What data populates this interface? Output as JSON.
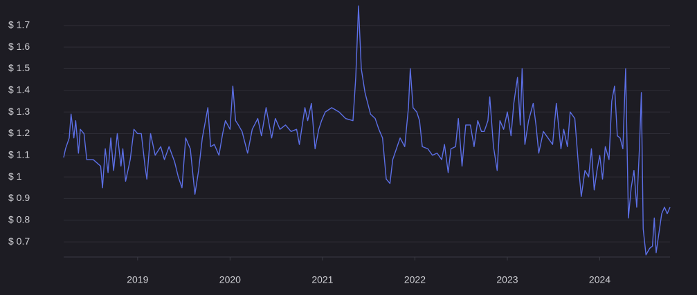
{
  "chart_data": {
    "type": "line",
    "color": "#5c6fe6",
    "grid": true,
    "x": [
      2018.2,
      2018.22,
      2018.26,
      2018.28,
      2018.31,
      2018.33,
      2018.36,
      2018.38,
      2018.42,
      2018.45,
      2018.52,
      2018.6,
      2018.62,
      2018.65,
      2018.68,
      2018.71,
      2018.74,
      2018.78,
      2018.82,
      2018.84,
      2018.87,
      2018.92,
      2018.96,
      2019.0,
      2019.04,
      2019.08,
      2019.1,
      2019.14,
      2019.19,
      2019.25,
      2019.29,
      2019.34,
      2019.4,
      2019.44,
      2019.48,
      2019.52,
      2019.57,
      2019.62,
      2019.66,
      2019.7,
      2019.76,
      2019.79,
      2019.83,
      2019.88,
      2019.92,
      2019.95,
      2020.0,
      2020.03,
      2020.06,
      2020.09,
      2020.13,
      2020.19,
      2020.24,
      2020.3,
      2020.34,
      2020.39,
      2020.45,
      2020.49,
      2020.54,
      2020.6,
      2020.66,
      2020.72,
      2020.75,
      2020.81,
      2020.84,
      2020.88,
      2020.92,
      2020.96,
      2020.99,
      2021.03,
      2021.1,
      2021.18,
      2021.25,
      2021.33,
      2021.36,
      2021.39,
      2021.42,
      2021.46,
      2021.52,
      2021.57,
      2021.61,
      2021.65,
      2021.69,
      2021.73,
      2021.76,
      2021.8,
      2021.84,
      2021.89,
      2021.93,
      2021.95,
      2021.98,
      2022.02,
      2022.05,
      2022.08,
      2022.14,
      2022.19,
      2022.24,
      2022.29,
      2022.32,
      2022.36,
      2022.39,
      2022.44,
      2022.47,
      2022.51,
      2022.55,
      2022.6,
      2022.64,
      2022.68,
      2022.72,
      2022.75,
      2022.79,
      2022.81,
      2022.85,
      2022.89,
      2022.92,
      2022.96,
      2023.0,
      2023.04,
      2023.07,
      2023.11,
      2023.14,
      2023.16,
      2023.19,
      2023.23,
      2023.28,
      2023.31,
      2023.34,
      2023.39,
      2023.44,
      2023.49,
      2023.53,
      2023.58,
      2023.61,
      2023.65,
      2023.68,
      2023.73,
      2023.77,
      2023.8,
      2023.84,
      2023.88,
      2023.91,
      2023.94,
      2023.97,
      2024.0,
      2024.03,
      2024.06,
      2024.1,
      2024.13,
      2024.16,
      2024.19,
      2024.22,
      2024.25,
      2024.28,
      2024.31,
      2024.34,
      2024.37,
      2024.4,
      2024.43,
      2024.45,
      2024.47,
      2024.5,
      2024.54,
      2024.57,
      2024.59,
      2024.61,
      2024.64,
      2024.67,
      2024.7,
      2024.73,
      2024.76
    ],
    "values": [
      1.09,
      1.13,
      1.18,
      1.29,
      1.18,
      1.26,
      1.11,
      1.22,
      1.2,
      1.08,
      1.08,
      1.05,
      0.95,
      1.13,
      1.02,
      1.18,
      1.03,
      1.2,
      1.05,
      1.13,
      0.98,
      1.08,
      1.22,
      1.2,
      1.2,
      1.05,
      0.99,
      1.2,
      1.1,
      1.14,
      1.08,
      1.14,
      1.07,
      1.0,
      0.95,
      1.18,
      1.13,
      0.92,
      1.03,
      1.18,
      1.32,
      1.14,
      1.15,
      1.1,
      1.2,
      1.26,
      1.22,
      1.42,
      1.26,
      1.24,
      1.21,
      1.11,
      1.22,
      1.27,
      1.19,
      1.32,
      1.18,
      1.27,
      1.22,
      1.24,
      1.21,
      1.22,
      1.15,
      1.32,
      1.26,
      1.34,
      1.13,
      1.22,
      1.26,
      1.3,
      1.32,
      1.3,
      1.27,
      1.26,
      1.46,
      1.79,
      1.5,
      1.39,
      1.29,
      1.27,
      1.22,
      1.18,
      0.99,
      0.97,
      1.08,
      1.13,
      1.18,
      1.14,
      1.32,
      1.5,
      1.32,
      1.3,
      1.26,
      1.14,
      1.13,
      1.1,
      1.11,
      1.08,
      1.15,
      1.02,
      1.13,
      1.14,
      1.27,
      1.05,
      1.24,
      1.24,
      1.14,
      1.26,
      1.21,
      1.21,
      1.26,
      1.37,
      1.14,
      1.03,
      1.26,
      1.22,
      1.3,
      1.19,
      1.34,
      1.46,
      1.24,
      1.5,
      1.15,
      1.26,
      1.34,
      1.24,
      1.11,
      1.21,
      1.18,
      1.15,
      1.34,
      1.13,
      1.22,
      1.14,
      1.3,
      1.27,
      1.05,
      0.91,
      1.03,
      1.0,
      1.13,
      0.94,
      1.03,
      1.1,
      0.99,
      1.14,
      1.08,
      1.35,
      1.42,
      1.19,
      1.18,
      1.13,
      1.5,
      0.81,
      0.95,
      1.03,
      0.86,
      1.14,
      1.39,
      0.76,
      0.64,
      0.67,
      0.68,
      0.81,
      0.65,
      0.74,
      0.83,
      0.86,
      0.83,
      0.86
    ],
    "xlim": [
      2018.2,
      2024.76
    ],
    "xticks": [
      2019,
      2020,
      2021,
      2022,
      2023,
      2024
    ],
    "ylim": [
      0.63,
      1.8
    ],
    "yticks": [
      {
        "value": 0.7,
        "label": "$ 0.7"
      },
      {
        "value": 0.8,
        "label": "$ 0.8"
      },
      {
        "value": 0.9,
        "label": "$ 0.9"
      },
      {
        "value": 1,
        "label": "$ 1"
      },
      {
        "value": 1.1,
        "label": "$ 1.1"
      },
      {
        "value": 1.2,
        "label": "$ 1.2"
      },
      {
        "value": 1.3,
        "label": "$ 1.3"
      },
      {
        "value": 1.4,
        "label": "$ 1.4"
      },
      {
        "value": 1.5,
        "label": "$ 1.5"
      },
      {
        "value": 1.6,
        "label": "$ 1.6"
      },
      {
        "value": 1.7,
        "label": "$ 1.7"
      }
    ]
  }
}
